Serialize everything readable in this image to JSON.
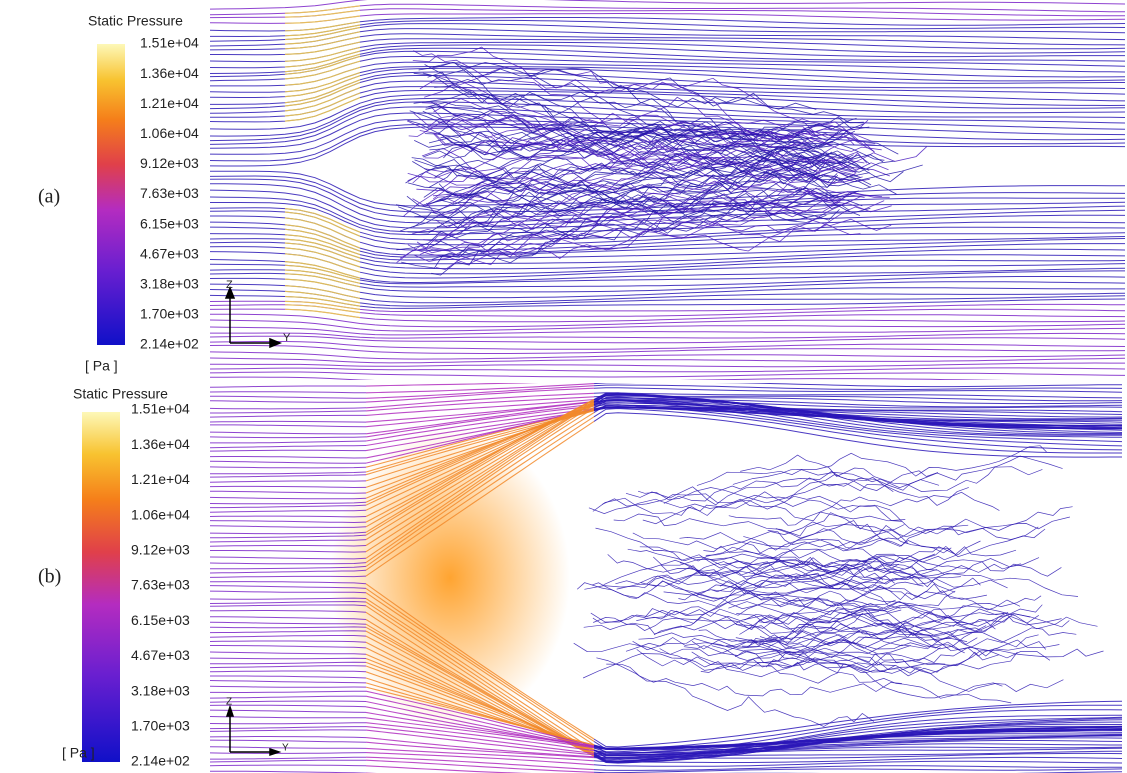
{
  "panels": [
    {
      "label": "(a)",
      "colorbar": {
        "title": "Static Pressure",
        "ticks": [
          "1.51e+04",
          "1.36e+04",
          "1.21e+04",
          "1.06e+04",
          "9.12e+03",
          "7.63e+03",
          "6.15e+03",
          "4.67e+03",
          "3.18e+03",
          "1.70e+03",
          "2.14e+02"
        ],
        "unit": "[ Pa ]"
      },
      "axes": {
        "vertical": "Z",
        "horizontal": "Y"
      }
    },
    {
      "label": "(b)",
      "colorbar": {
        "title": "Static Pressure",
        "ticks": [
          "1.51e+04",
          "1.36e+04",
          "1.21e+04",
          "1.06e+04",
          "9.12e+03",
          "7.63e+03",
          "6.15e+03",
          "4.67e+03",
          "3.18e+03",
          "1.70e+03",
          "2.14e+02"
        ],
        "unit": "[ Pa ]"
      },
      "axes": {
        "vertical": "Z",
        "horizontal": "Y"
      }
    }
  ]
}
